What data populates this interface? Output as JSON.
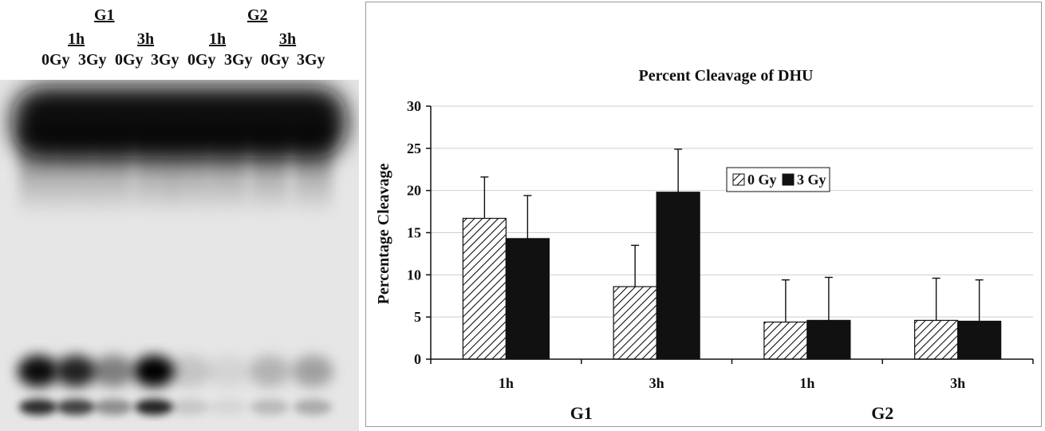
{
  "gel": {
    "groups": [
      {
        "label": "G1",
        "times": [
          "1h",
          "3h"
        ]
      },
      {
        "label": "G2",
        "times": [
          "1h",
          "3h"
        ]
      }
    ],
    "lanes": [
      "0Gy",
      "3Gy",
      "0Gy",
      "3Gy",
      "0Gy",
      "3Gy",
      "0Gy",
      "3Gy"
    ],
    "lower_band_intensity": [
      0.95,
      0.85,
      0.45,
      1.0,
      0.15,
      0.08,
      0.22,
      0.3
    ]
  },
  "chart_data": {
    "type": "bar",
    "title": "Percent Cleavage of DHU",
    "ylabel": "Percentage Cleavage",
    "xlabel": "",
    "ylim": [
      0,
      30
    ],
    "yticks": [
      0,
      5,
      10,
      15,
      20,
      25,
      30
    ],
    "grid": true,
    "legend_position": "center",
    "categories": [
      "1h",
      "3h",
      "1h",
      "3h"
    ],
    "groups": [
      {
        "label": "G1",
        "categories": [
          "1h",
          "3h"
        ]
      },
      {
        "label": "G2",
        "categories": [
          "1h",
          "3h"
        ]
      }
    ],
    "series": [
      {
        "name": "0 Gy",
        "pattern": "hatched",
        "values": [
          16.7,
          8.6,
          4.4,
          4.6
        ],
        "error": [
          4.9,
          4.9,
          5.0,
          5.0
        ]
      },
      {
        "name": "3 Gy",
        "pattern": "solid",
        "color": "#111111",
        "values": [
          14.3,
          19.8,
          4.6,
          4.5
        ],
        "error": [
          5.1,
          5.1,
          5.1,
          4.9
        ]
      }
    ]
  }
}
